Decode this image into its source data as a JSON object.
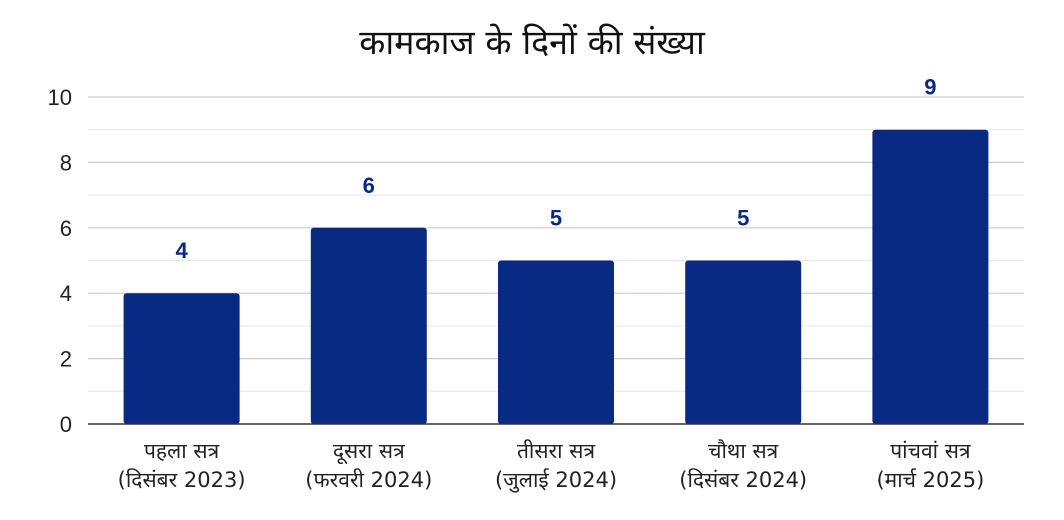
{
  "chart_data": {
    "type": "bar",
    "title": "कामकाज के दिनों की संख्या",
    "categories": [
      [
        "पहला सत्र",
        "(दिसंबर 2023)"
      ],
      [
        "दूसरा सत्र",
        "(फरवरी 2024)"
      ],
      [
        "तीसरा सत्र",
        "(जुलाई 2024)"
      ],
      [
        "चौथा सत्र",
        "(दिसंबर 2024)"
      ],
      [
        "पांचवां सत्र",
        "(मार्च 2025)"
      ]
    ],
    "values": [
      4,
      6,
      5,
      5,
      9
    ],
    "ylim": [
      0,
      10
    ],
    "yticks": [
      0,
      2,
      4,
      6,
      8,
      10
    ],
    "grid": true,
    "xlabel": "",
    "ylabel": "",
    "colors": {
      "bar": "#082a82",
      "data_label": "#082a82",
      "grid": "#cccccc",
      "axis": "#333333"
    }
  }
}
